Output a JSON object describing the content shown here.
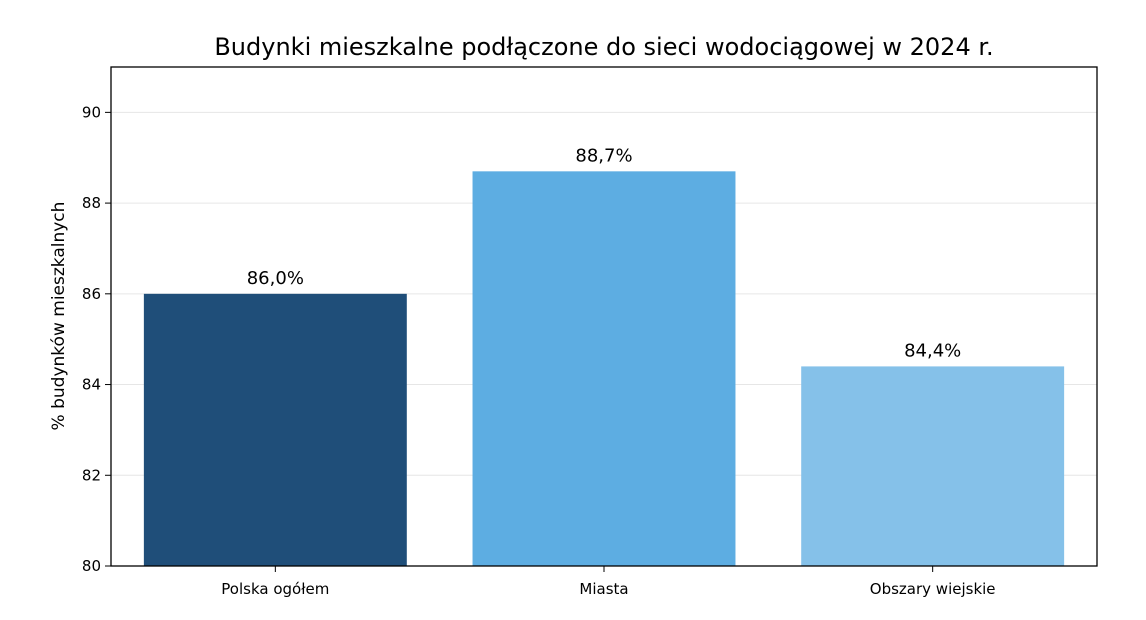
{
  "chart_data": {
    "type": "bar",
    "title": "Budynki mieszkalne podłączone do sieci wodociągowej w 2024 r.",
    "xlabel": "",
    "ylabel": "% budynków mieszkalnych",
    "categories": [
      "Polska ogółem",
      "Miasta",
      "Obszary wiejskie"
    ],
    "values": [
      86.0,
      88.7,
      84.4
    ],
    "data_labels": [
      "86,0%",
      "88,7%",
      "84,4%"
    ],
    "colors": [
      "#1f4e79",
      "#5dade2",
      "#85c1e9"
    ],
    "ylim": [
      80,
      91
    ],
    "yticks": [
      80,
      82,
      84,
      86,
      88,
      90
    ],
    "grid": true,
    "legend": "none"
  }
}
